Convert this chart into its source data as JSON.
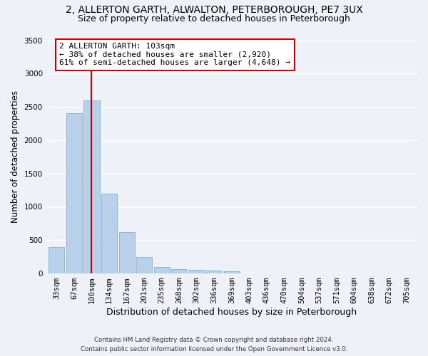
{
  "title_line1": "2, ALLERTON GARTH, ALWALTON, PETERBOROUGH, PE7 3UX",
  "title_line2": "Size of property relative to detached houses in Peterborough",
  "xlabel": "Distribution of detached houses by size in Peterborough",
  "ylabel": "Number of detached properties",
  "categories": [
    "33sqm",
    "67sqm",
    "100sqm",
    "134sqm",
    "167sqm",
    "201sqm",
    "235sqm",
    "268sqm",
    "302sqm",
    "336sqm",
    "369sqm",
    "403sqm",
    "436sqm",
    "470sqm",
    "504sqm",
    "537sqm",
    "571sqm",
    "604sqm",
    "638sqm",
    "672sqm",
    "705sqm"
  ],
  "bar_values": [
    400,
    2400,
    2600,
    1200,
    620,
    250,
    100,
    65,
    58,
    40,
    28,
    0,
    0,
    0,
    0,
    0,
    0,
    0,
    0,
    0,
    0
  ],
  "bar_color": "#b8d0ea",
  "bar_edge_color": "#88aed0",
  "vline_x_index": 2,
  "vline_color": "#cc0000",
  "annotation_text": "2 ALLERTON GARTH: 103sqm\n← 38% of detached houses are smaller (2,920)\n61% of semi-detached houses are larger (4,648) →",
  "annotation_box_color": "#ffffff",
  "annotation_box_edge": "#cc0000",
  "annotation_fontsize": 8,
  "ylim": [
    0,
    3500
  ],
  "yticks": [
    0,
    500,
    1000,
    1500,
    2000,
    2500,
    3000,
    3500
  ],
  "background_color": "#eef2f8",
  "grid_color": "#ffffff",
  "footer_line1": "Contains HM Land Registry data © Crown copyright and database right 2024.",
  "footer_line2": "Contains public sector information licensed under the Open Government Licence v3.0.",
  "title_fontsize": 10,
  "subtitle_fontsize": 9,
  "xlabel_fontsize": 9,
  "ylabel_fontsize": 8.5,
  "tick_fontsize": 7.5
}
